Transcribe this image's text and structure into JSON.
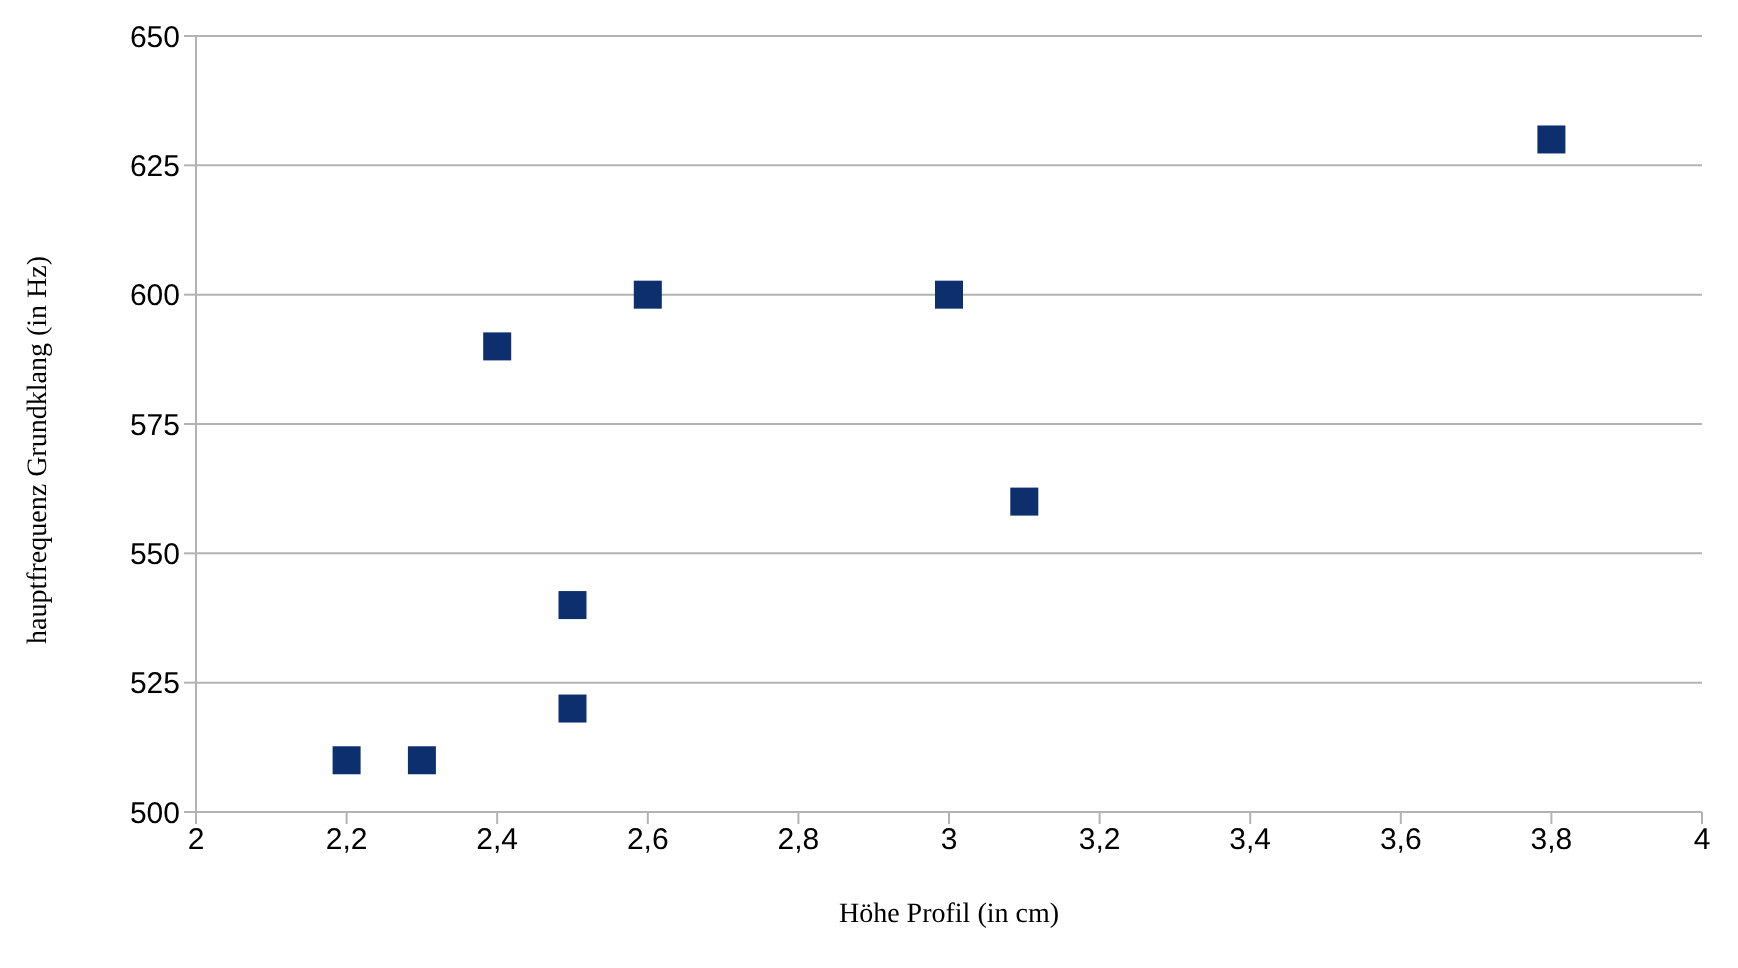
{
  "chart_data": {
    "type": "scatter",
    "xlabel": "Höhe Profil (in cm)",
    "ylabel": "hauptfrequenz Grundklang (in Hz)",
    "x": [
      2.2,
      2.3,
      2.4,
      2.5,
      2.5,
      2.6,
      3.0,
      3.1,
      3.8
    ],
    "series": [
      {
        "color": "#0e2f6e",
        "values": [
          510,
          510,
          590,
          540,
          520,
          600,
          600,
          560,
          630
        ]
      }
    ],
    "xlim": [
      2,
      4
    ],
    "xticks": [
      2,
      {
        "value": 2.2,
        "label": "2,2"
      },
      {
        "value": 2.4,
        "label": "2,4"
      },
      {
        "value": 2.6,
        "label": "2,6"
      },
      {
        "value": 2.8,
        "label": "2,8"
      },
      3,
      {
        "value": 3.2,
        "label": "3,2"
      },
      {
        "value": 3.4,
        "label": "3,4"
      },
      {
        "value": 3.6,
        "label": "3,6"
      },
      {
        "value": 3.8,
        "label": "3,8"
      },
      4
    ],
    "ylim": [
      500,
      650
    ],
    "yticks": [
      500,
      525,
      550,
      575,
      600,
      625,
      650
    ],
    "grid": "y",
    "marker": "square",
    "legend": false
  }
}
